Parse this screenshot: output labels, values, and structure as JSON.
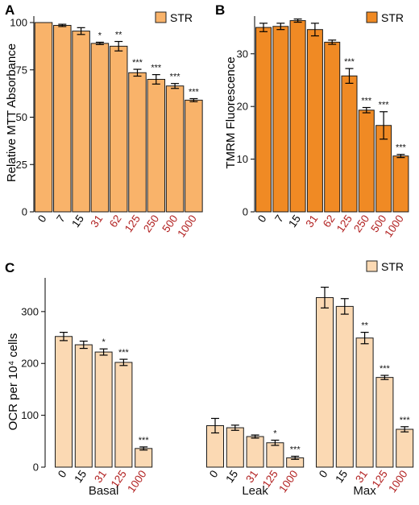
{
  "chart_data": [
    {
      "panel": "A",
      "type": "bar",
      "ylabel": "Relative MTT Absorbance",
      "ylim": [
        0,
        100
      ],
      "yticks": [
        0,
        25,
        50,
        75,
        100
      ],
      "categories": [
        "0",
        "7",
        "15",
        "31",
        "62",
        "125",
        "250",
        "500",
        "1000"
      ],
      "category_colors": [
        "#000000",
        "#000000",
        "#000000",
        "#b22222",
        "#b22222",
        "#b22222",
        "#b22222",
        "#b22222",
        "#b22222"
      ],
      "legend": "STR",
      "legend_position": "top-right",
      "series": [
        {
          "name": "STR",
          "color": "#f9b36a",
          "values": [
            100,
            98.5,
            95.5,
            89,
            87.5,
            73.5,
            70,
            66.5,
            59
          ],
          "errors": [
            0,
            0.6,
            1.8,
            0.6,
            2.5,
            1.8,
            2.5,
            1.3,
            0.8
          ],
          "significance": [
            "",
            "",
            "",
            "*",
            "**",
            "***",
            "***",
            "***",
            "***"
          ]
        }
      ]
    },
    {
      "panel": "B",
      "type": "bar",
      "ylabel": "TMRM Fluorescence",
      "ylim": [
        0,
        37
      ],
      "yticks": [
        0,
        10,
        20,
        30
      ],
      "categories": [
        "0",
        "7",
        "15",
        "31",
        "62",
        "125",
        "250",
        "500",
        "1000"
      ],
      "category_colors": [
        "#000000",
        "#000000",
        "#000000",
        "#b22222",
        "#b22222",
        "#b22222",
        "#b22222",
        "#b22222",
        "#b22222"
      ],
      "legend": "STR",
      "legend_position": "top-right",
      "series": [
        {
          "name": "STR",
          "color": "#f08a24",
          "values": [
            35,
            35.2,
            36.3,
            34.6,
            32.2,
            25.8,
            19.3,
            16.4,
            10.6
          ],
          "errors": [
            0.8,
            0.6,
            0.3,
            1.2,
            0.4,
            1.4,
            0.5,
            2.6,
            0.3
          ],
          "significance": [
            "",
            "",
            "",
            "",
            "",
            "***",
            "***",
            "***",
            "***"
          ]
        }
      ]
    },
    {
      "panel": "C",
      "type": "bar",
      "ylabel": "OCR per 10⁴ cells",
      "ylim": [
        0,
        365
      ],
      "yticks": [
        0,
        100,
        200,
        300
      ],
      "legend": "STR",
      "legend_position": "top-right",
      "color": "#fbd9b3",
      "groups": [
        {
          "name": "Basal",
          "categories": [
            "0",
            "15",
            "31",
            "125",
            "1000"
          ],
          "category_colors": [
            "#000000",
            "#000000",
            "#b22222",
            "#b22222",
            "#b22222"
          ],
          "values": [
            252,
            236,
            222,
            202,
            36
          ],
          "errors": [
            8,
            7,
            6,
            6,
            3
          ],
          "significance": [
            "",
            "",
            "*",
            "***",
            "***"
          ]
        },
        {
          "name": "Leak",
          "categories": [
            "0",
            "15",
            "31",
            "125",
            "1000"
          ],
          "category_colors": [
            "#000000",
            "#000000",
            "#b22222",
            "#b22222",
            "#b22222"
          ],
          "values": [
            80,
            76,
            59,
            47,
            18
          ],
          "errors": [
            14,
            5,
            3,
            5,
            3
          ],
          "significance": [
            "",
            "",
            "",
            "*",
            "***"
          ]
        },
        {
          "name": "Max",
          "categories": [
            "0",
            "15",
            "31",
            "125",
            "1000"
          ],
          "category_colors": [
            "#000000",
            "#000000",
            "#b22222",
            "#b22222",
            "#b22222"
          ],
          "values": [
            327,
            310,
            249,
            173,
            73
          ],
          "errors": [
            20,
            15,
            11,
            4,
            5
          ],
          "significance": [
            "",
            "",
            "**",
            "***",
            "***"
          ]
        }
      ]
    }
  ]
}
